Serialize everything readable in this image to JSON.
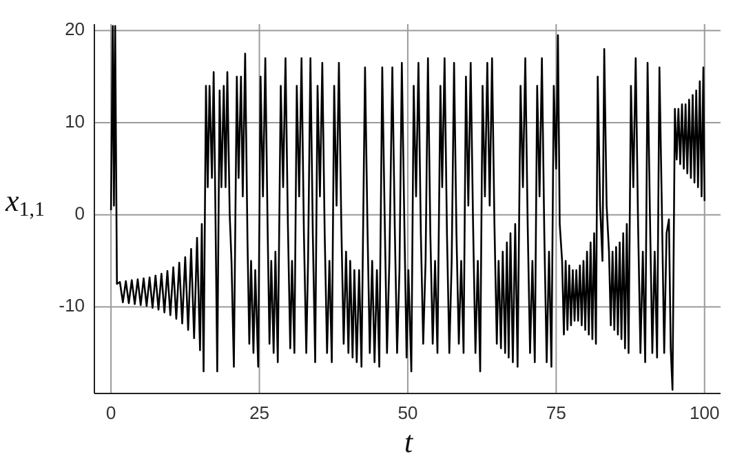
{
  "chart_data": {
    "type": "line",
    "xlabel": "t",
    "ylabel": {
      "base": "x",
      "sub": "1,1"
    },
    "color": "#000000",
    "grid": true,
    "xlim": [
      -2.8,
      102.7
    ],
    "ylim": [
      -19.4,
      20.7
    ],
    "xticks": [
      0,
      25,
      50,
      75,
      100
    ],
    "yticks": [
      -10,
      0,
      10,
      20
    ],
    "x": [
      0,
      0.3,
      0.5,
      0.7,
      1.0,
      1.5,
      2,
      2.5,
      3,
      3.5,
      4,
      4.5,
      5,
      5.5,
      6,
      6.5,
      7,
      7.5,
      8,
      8.5,
      9,
      9.5,
      10,
      10.5,
      11,
      11.5,
      12,
      12.5,
      13,
      13.5,
      14,
      14.5,
      15,
      15.3,
      15.6,
      16,
      16.3,
      16.6,
      17,
      17.3,
      17.6,
      17.9,
      18.3,
      18.6,
      19,
      19.3,
      19.6,
      20,
      20.3,
      20.7,
      21.2,
      21.5,
      21.9,
      22.2,
      22.6,
      23,
      23.3,
      23.6,
      24,
      24.3,
      24.8,
      25.2,
      25.6,
      26,
      26.4,
      26.7,
      27,
      27.4,
      27.7,
      28.1,
      28.6,
      29,
      29.4,
      29.8,
      30.2,
      30.5,
      30.9,
      31.3,
      31.7,
      32.1,
      32.5,
      32.9,
      33.2,
      33.6,
      34,
      34.4,
      34.8,
      35.2,
      35.6,
      36,
      36.4,
      36.8,
      37.2,
      37.6,
      38,
      38.4,
      38.8,
      39.2,
      39.6,
      40,
      40.3,
      40.7,
      41,
      41.4,
      41.8,
      42.2,
      42.8,
      43.2,
      43.6,
      44,
      44.4,
      44.8,
      45.2,
      45.7,
      46.1,
      46.5,
      46.9,
      47.4,
      47.8,
      48.2,
      48.6,
      49,
      49.4,
      49.8,
      50.1,
      50.6,
      51,
      51.4,
      51.8,
      52.2,
      52.6,
      53,
      53.4,
      53.8,
      54.2,
      54.6,
      55,
      55.5,
      55.8,
      56.2,
      56.6,
      57,
      57.4,
      57.8,
      58.2,
      58.6,
      59,
      59.4,
      59.8,
      60.2,
      60.6,
      61,
      61.4,
      61.8,
      62.2,
      62.6,
      63,
      63.4,
      63.8,
      64.2,
      64.6,
      65,
      65.3,
      65.7,
      66,
      66.4,
      66.7,
      67,
      67.3,
      67.7,
      68.1,
      68.5,
      69,
      69.4,
      69.8,
      70.2,
      70.6,
      71,
      71.4,
      71.8,
      72.2,
      72.6,
      73,
      73.4,
      73.8,
      74.2,
      74.6,
      75,
      75.3,
      75.6,
      76,
      76.3,
      76.6,
      76.9,
      77.2,
      77.5,
      77.8,
      78.1,
      78.4,
      78.7,
      79,
      79.3,
      79.6,
      79.9,
      80.2,
      80.5,
      80.8,
      81.1,
      81.4,
      81.7,
      82,
      82.4,
      82.8,
      83.1,
      83.5,
      83.9,
      84.2,
      84.5,
      84.8,
      85.1,
      85.4,
      85.7,
      86,
      86.3,
      86.6,
      86.9,
      87.2,
      87.6,
      88,
      88.4,
      88.8,
      89.2,
      89.6,
      90,
      90.4,
      90.8,
      91.2,
      91.6,
      92,
      92.4,
      92.8,
      93.2,
      93.6,
      94,
      94.3,
      94.6,
      95,
      95.3,
      95.6,
      95.9,
      96.2,
      96.5,
      96.8,
      97.1,
      97.4,
      97.7,
      98,
      98.3,
      98.6,
      98.9,
      99.2,
      99.5,
      99.8,
      100
    ],
    "values": [
      0.5,
      20.5,
      1,
      20.5,
      -7.5,
      -7.3,
      -9.5,
      -7.2,
      -9.6,
      -7.1,
      -9.7,
      -7,
      -9.8,
      -6.9,
      -9.9,
      -6.8,
      -10.1,
      -6.6,
      -10.3,
      -6.4,
      -10.6,
      -6.1,
      -10.9,
      -5.7,
      -11.3,
      -5.2,
      -11.8,
      -4.6,
      -12.5,
      -3.7,
      -13.4,
      -2.5,
      -14.7,
      -1,
      -17,
      14,
      3,
      14,
      4,
      15.5,
      0,
      -17,
      13.5,
      3,
      14,
      3,
      15.5,
      0,
      -5,
      -16.5,
      15,
      4,
      15,
      2,
      17.5,
      -3,
      -14,
      -5,
      -15,
      -6,
      -16.5,
      15,
      2,
      17,
      -2,
      -14,
      -5,
      -15,
      -4,
      -16,
      14,
      3,
      17,
      -1,
      -14.5,
      -5,
      -15,
      14,
      2,
      17,
      -2,
      -15,
      -5,
      17,
      -2,
      -16,
      14,
      2,
      16.5,
      -2,
      -15,
      -5,
      -16,
      14,
      1,
      16.5,
      -1,
      -14,
      -4,
      -15,
      -5,
      -15.5,
      -6,
      -16,
      -6,
      -16.5,
      16,
      -1,
      -15,
      -5,
      -16,
      -6,
      -16.5,
      16,
      0,
      -15,
      -5,
      16,
      -1,
      -15,
      -6,
      16.5,
      0,
      -15.5,
      -6,
      -17,
      14,
      2,
      16.5,
      -2,
      -14,
      -5,
      17,
      -2,
      -14,
      -5,
      -15,
      14,
      3,
      17,
      -2,
      -15,
      -5,
      16.5,
      -2,
      -14,
      -5,
      -15,
      15,
      1,
      16.5,
      -1,
      -15,
      -5,
      -17,
      14,
      2,
      16.5,
      1,
      17,
      -1,
      -14,
      -5,
      -14.5,
      -4,
      -15,
      -3,
      -15.5,
      -2,
      -16,
      -1,
      -16.5,
      14,
      3,
      17,
      -1,
      -15,
      -5,
      -16,
      14,
      2,
      17,
      -2,
      -16,
      -4,
      -16.5,
      14,
      5,
      19.5,
      -1,
      -5,
      -13,
      -5,
      -12.5,
      -5.5,
      -12,
      -6,
      -11.5,
      -6,
      -11.5,
      -5.5,
      -12,
      -5,
      -12.5,
      -4,
      -13,
      -3,
      -13.5,
      -2,
      -14,
      15,
      1,
      -5,
      18,
      1,
      -4,
      -12,
      -4,
      -12.5,
      -3.5,
      -13,
      -3,
      -13.5,
      -2,
      -14.5,
      -1,
      -15,
      14,
      3,
      17,
      -1,
      -15,
      -4,
      -16,
      16.5,
      0,
      -15,
      -4,
      -15.5,
      16,
      1,
      -15,
      -2,
      -0.5,
      -14.5,
      -19,
      11.5,
      6,
      11.5,
      5.5,
      12,
      5,
      12,
      4.5,
      12.5,
      4,
      13,
      3.5,
      13.5,
      3,
      14.5,
      2,
      16,
      1.5
    ]
  }
}
